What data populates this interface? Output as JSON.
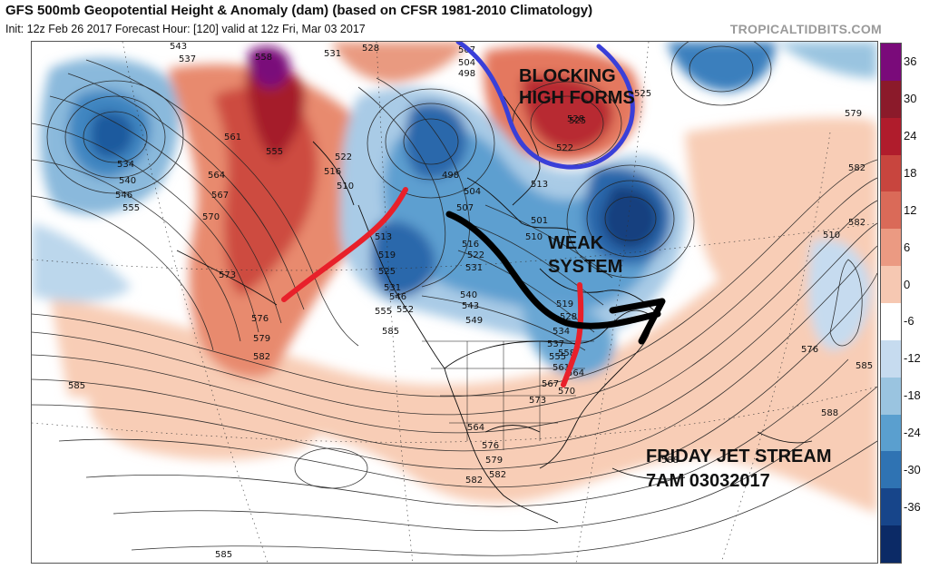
{
  "header": {
    "title": "GFS 500mb Geopotential Height & Anomaly (dam) (based on CFSR 1981-2010 Climatology)",
    "subtitle": "Init: 12z Feb 26 2017   Forecast Hour: [120]   valid at 12z Fri, Mar 03 2017",
    "source": "TROPICALTIDBITS.COM"
  },
  "colorbar": {
    "labels": [
      "36",
      "30",
      "24",
      "18",
      "12",
      "6",
      "0",
      "-6",
      "-12",
      "-18",
      "-24",
      "-30",
      "-36"
    ],
    "colors": [
      "#7a0a7a",
      "#8b1a2a",
      "#b01c2c",
      "#c8453e",
      "#da6a58",
      "#eb9a82",
      "#f6c8b2",
      "#ffffff",
      "#c6dbef",
      "#9ac4e0",
      "#5a9fcf",
      "#2f73b3",
      "#17458a",
      "#0b2a66"
    ]
  },
  "annotations": {
    "blocking": "BLOCKING\nHIGH FORMS",
    "weak": "WEAK\nSYSTEM",
    "friday": "FRIDAY JET STREAM\n7AM 03032017"
  },
  "contour_labels": [
    "543",
    "537",
    "558",
    "531",
    "528",
    "507",
    "504",
    "498",
    "525",
    "528",
    "525",
    "522",
    "579",
    "561",
    "555",
    "534",
    "540",
    "546",
    "555",
    "522",
    "516",
    "510",
    "498",
    "504",
    "507",
    "501",
    "510",
    "513",
    "564",
    "567",
    "570",
    "513",
    "519",
    "525",
    "531",
    "516",
    "522",
    "531",
    "582",
    "510",
    "582",
    "573",
    "546",
    "552",
    "555",
    "540",
    "543",
    "549",
    "519",
    "528",
    "534",
    "537",
    "555",
    "558",
    "561",
    "564",
    "567",
    "570",
    "573",
    "576",
    "579",
    "582",
    "585",
    "564",
    "576",
    "579",
    "582",
    "576",
    "588",
    "585",
    "588",
    "582",
    "585",
    "585"
  ]
}
